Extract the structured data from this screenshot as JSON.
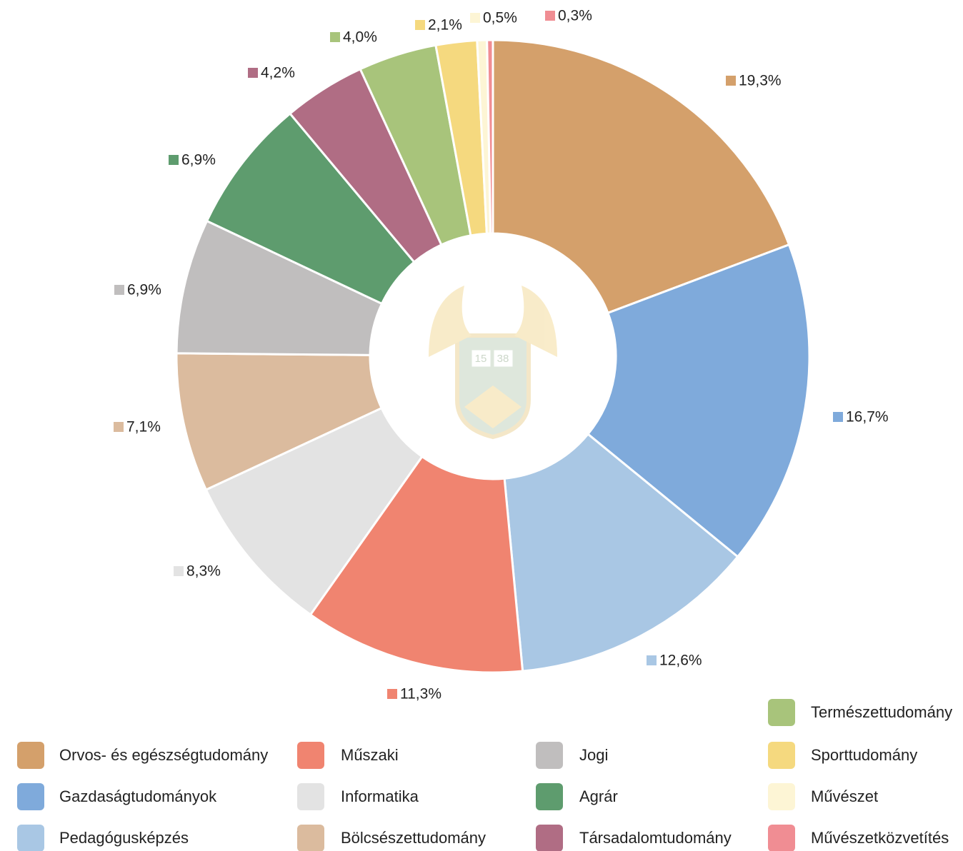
{
  "chart_data": {
    "type": "donut",
    "categories": [
      "Orvos- és egészségtudomány",
      "Gazdaságtudományok",
      "Pedagógusképzés",
      "Műszaki",
      "Informatika",
      "Bölcsészettudomány",
      "Jogi",
      "Agrár",
      "Társadalomtudomány",
      "Természettudomány",
      "Sporttudomány",
      "Művészet",
      "Művészetközvetítés"
    ],
    "values": [
      19.3,
      16.7,
      12.6,
      11.3,
      8.3,
      7.1,
      6.9,
      6.9,
      4.2,
      4.0,
      2.1,
      0.5,
      0.3
    ],
    "value_labels": [
      "19,3%",
      "16,7%",
      "12,6%",
      "11,3%",
      "8,3%",
      "7,1%",
      "6,9%",
      "6,9%",
      "4,2%",
      "4,0%",
      "2,1%",
      "0,5%",
      "0,3%"
    ],
    "colors": [
      "#d4a06b",
      "#7faadb",
      "#a9c7e4",
      "#f08470",
      "#e3e3e3",
      "#dbbb9e",
      "#c0bebe",
      "#5e9c6e",
      "#b06d84",
      "#a8c47b",
      "#f5d97f",
      "#fdf5d5",
      "#f08d93"
    ],
    "logo_text": [
      "15",
      "38"
    ]
  }
}
